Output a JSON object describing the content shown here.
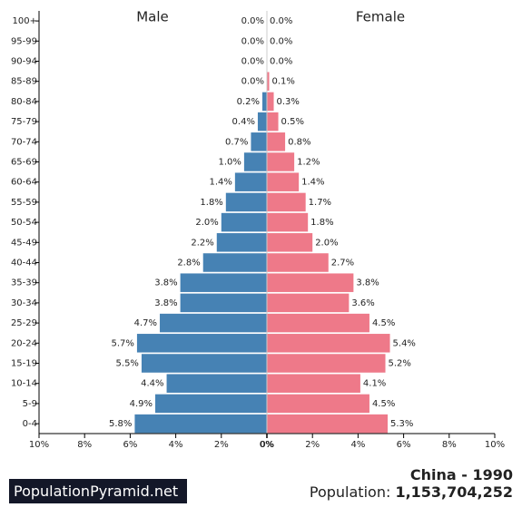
{
  "chart_data": {
    "type": "bar",
    "orientation": "horizontal-pyramid",
    "male_label": "Male",
    "female_label": "Female",
    "age_groups": [
      "100+",
      "95-99",
      "90-94",
      "85-89",
      "80-84",
      "75-79",
      "70-74",
      "65-69",
      "60-64",
      "55-59",
      "50-54",
      "45-49",
      "40-44",
      "35-39",
      "30-34",
      "25-29",
      "20-24",
      "15-19",
      "10-14",
      "5-9",
      "0-4"
    ],
    "series": [
      {
        "name": "Male",
        "values": [
          0.0,
          0.0,
          0.0,
          0.0,
          0.2,
          0.4,
          0.7,
          1.0,
          1.4,
          1.8,
          2.0,
          2.2,
          2.8,
          3.8,
          3.8,
          4.7,
          5.7,
          5.5,
          4.4,
          4.9,
          5.8
        ],
        "labels": [
          "0.0%",
          "0.0%",
          "0.0%",
          "0.0%",
          "0.2%",
          "0.4%",
          "0.7%",
          "1.0%",
          "1.4%",
          "1.8%",
          "2.0%",
          "2.2%",
          "2.8%",
          "3.8%",
          "3.8%",
          "4.7%",
          "5.7%",
          "5.5%",
          "4.4%",
          "4.9%",
          "5.8%"
        ]
      },
      {
        "name": "Female",
        "values": [
          0.0,
          0.0,
          0.0,
          0.1,
          0.3,
          0.5,
          0.8,
          1.2,
          1.4,
          1.7,
          1.8,
          2.0,
          2.7,
          3.8,
          3.6,
          4.5,
          5.4,
          5.2,
          4.1,
          4.5,
          5.3
        ],
        "labels": [
          "0.0%",
          "0.0%",
          "0.0%",
          "0.1%",
          "0.3%",
          "0.5%",
          "0.8%",
          "1.2%",
          "1.4%",
          "1.7%",
          "1.8%",
          "2.0%",
          "2.7%",
          "3.8%",
          "3.6%",
          "4.5%",
          "5.4%",
          "5.2%",
          "4.1%",
          "4.5%",
          "5.3%"
        ]
      }
    ],
    "x_ticks": [
      "10%",
      "8%",
      "6%",
      "4%",
      "2%",
      "0%",
      "0%",
      "2%",
      "4%",
      "6%",
      "8%",
      "10%"
    ],
    "xlim": [
      -10,
      10
    ],
    "colors": {
      "male": "#4682b4",
      "female": "#ee7989"
    },
    "grid": false
  },
  "footer": {
    "brand": "PopulationPyramid.net",
    "country_year": "China - 1990",
    "population_label": "Population: ",
    "population_value": "1,153,704,252"
  }
}
